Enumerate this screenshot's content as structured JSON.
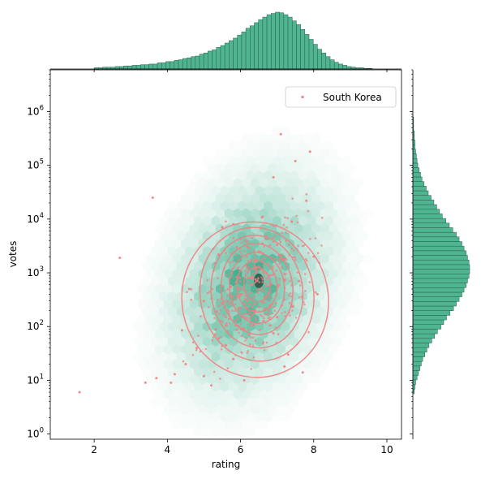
{
  "chart_data": {
    "type": "scatter",
    "title": "",
    "xlabel": "rating",
    "ylabel": "votes",
    "xlim": [
      0.8,
      10.4
    ],
    "ylim": [
      0.8,
      6000000
    ],
    "yscale": "log",
    "xticks": [
      2,
      4,
      6,
      8,
      10
    ],
    "yticks": [
      1,
      10,
      100,
      1000,
      10000,
      100000,
      1000000
    ],
    "ytick_labels": [
      {
        "base": "10",
        "exp": "0"
      },
      {
        "base": "10",
        "exp": "1"
      },
      {
        "base": "10",
        "exp": "2"
      },
      {
        "base": "10",
        "exp": "3"
      },
      {
        "base": "10",
        "exp": "4"
      },
      {
        "base": "10",
        "exp": "5"
      },
      {
        "base": "10",
        "exp": "6"
      }
    ],
    "legend": {
      "placement": "upper right"
    },
    "colors": {
      "background_hex": "#1b9e77",
      "highlight": "#f08080",
      "marginal_fill": "#4fb591",
      "marginal_edge": "#2c5e4c"
    },
    "background_hexbin": {
      "center_x": 6.3,
      "center_log_votes": 2.8,
      "description": "all titles density"
    },
    "series": [
      {
        "name": "South Korea",
        "kind": "scatter",
        "points": [
          [
            1.6,
            6
          ],
          [
            2.7,
            1900
          ],
          [
            3.4,
            9
          ],
          [
            3.6,
            25000
          ],
          [
            3.7,
            11
          ],
          [
            4.1,
            9
          ],
          [
            4.2,
            13
          ],
          [
            4.4,
            85
          ],
          [
            4.5,
            20
          ],
          [
            4.6,
            500
          ],
          [
            4.8,
            40
          ],
          [
            5.0,
            12
          ],
          [
            5.0,
            300
          ],
          [
            5.2,
            8
          ],
          [
            5.3,
            1500
          ],
          [
            5.4,
            60
          ],
          [
            5.5,
            7000
          ],
          [
            5.6,
            150
          ],
          [
            5.7,
            800
          ],
          [
            5.8,
            25
          ],
          [
            5.9,
            3000
          ],
          [
            6.0,
            400
          ],
          [
            6.1,
            90
          ],
          [
            6.2,
            1200
          ],
          [
            6.3,
            600
          ],
          [
            6.4,
            200
          ],
          [
            6.5,
            2500
          ],
          [
            6.6,
            11000
          ],
          [
            6.7,
            350
          ],
          [
            6.8,
            900
          ],
          [
            6.9,
            60000
          ],
          [
            7.0,
            150
          ],
          [
            7.1,
            380000
          ],
          [
            7.2,
            1800
          ],
          [
            7.3,
            30
          ],
          [
            7.4,
            9000
          ],
          [
            7.5,
            120000
          ],
          [
            7.6,
            700
          ],
          [
            7.7,
            14
          ],
          [
            7.8,
            22000
          ],
          [
            7.9,
            180000
          ],
          [
            8.0,
            2000
          ],
          [
            8.1,
            400
          ],
          [
            6.4,
            1600
          ],
          [
            6.2,
            800
          ],
          [
            6.5,
            500
          ],
          [
            6.6,
            3500
          ],
          [
            6.0,
            1100
          ],
          [
            6.8,
            250
          ],
          [
            6.3,
            120
          ],
          [
            5.6,
            45
          ],
          [
            6.9,
            75
          ],
          [
            7.2,
            18
          ],
          [
            6.1,
            10
          ],
          [
            5.9,
            700
          ],
          [
            6.7,
            4200
          ],
          [
            6.2,
            3000
          ],
          [
            7.0,
            3300
          ],
          [
            5.4,
            2200
          ],
          [
            5.8,
            8000
          ]
        ]
      }
    ],
    "contours": {
      "kind": "kde",
      "levels": [
        {
          "cx": 6.4,
          "cy": 2.5,
          "rx": 2.0,
          "ry": 1.45,
          "rot": -12
        },
        {
          "cx": 6.45,
          "cy": 2.6,
          "rx": 1.55,
          "ry": 1.25,
          "rot": -10
        },
        {
          "cx": 6.45,
          "cy": 2.65,
          "rx": 1.25,
          "ry": 1.05,
          "rot": -8
        },
        {
          "cx": 6.45,
          "cy": 2.7,
          "rx": 0.98,
          "ry": 0.85,
          "rot": -6
        },
        {
          "cx": 6.45,
          "cy": 2.72,
          "rx": 0.75,
          "ry": 0.66,
          "rot": -5
        },
        {
          "cx": 6.45,
          "cy": 2.75,
          "rx": 0.55,
          "ry": 0.48,
          "rot": -4
        },
        {
          "cx": 6.45,
          "cy": 2.78,
          "rx": 0.36,
          "ry": 0.32,
          "rot": -3
        }
      ]
    },
    "marginal_x": {
      "kind": "histogram",
      "bins_from": 2.0,
      "bins_to": 9.6,
      "counts": [
        2,
        2,
        3,
        3,
        3,
        4,
        4,
        5,
        5,
        6,
        6,
        7,
        7,
        8,
        8,
        10,
        10,
        12,
        12,
        14,
        15,
        17,
        18,
        20,
        21,
        24,
        26,
        29,
        31,
        35,
        38,
        42,
        46,
        50,
        55,
        60,
        66,
        70,
        75,
        80,
        84,
        88,
        90,
        92,
        91,
        88,
        84,
        78,
        72,
        64,
        56,
        48,
        40,
        32,
        26,
        20,
        15,
        11,
        8,
        6,
        4,
        3,
        2,
        2,
        1,
        1
      ]
    },
    "marginal_y": {
      "kind": "histogram",
      "log_from": 0.75,
      "log_to": 5.9,
      "counts": [
        2,
        3,
        4,
        6,
        8,
        10,
        12,
        14,
        17,
        20,
        23,
        27,
        31,
        35,
        40,
        44,
        48,
        53,
        58,
        62,
        66,
        70,
        73,
        76,
        78,
        80,
        81,
        81,
        80,
        78,
        76,
        73,
        70,
        66,
        62,
        57,
        52,
        47,
        42,
        38,
        34,
        30,
        26,
        22,
        19,
        16,
        13,
        11,
        9,
        7,
        6,
        5,
        4,
        3,
        3,
        2,
        2,
        1,
        1,
        1
      ]
    }
  }
}
